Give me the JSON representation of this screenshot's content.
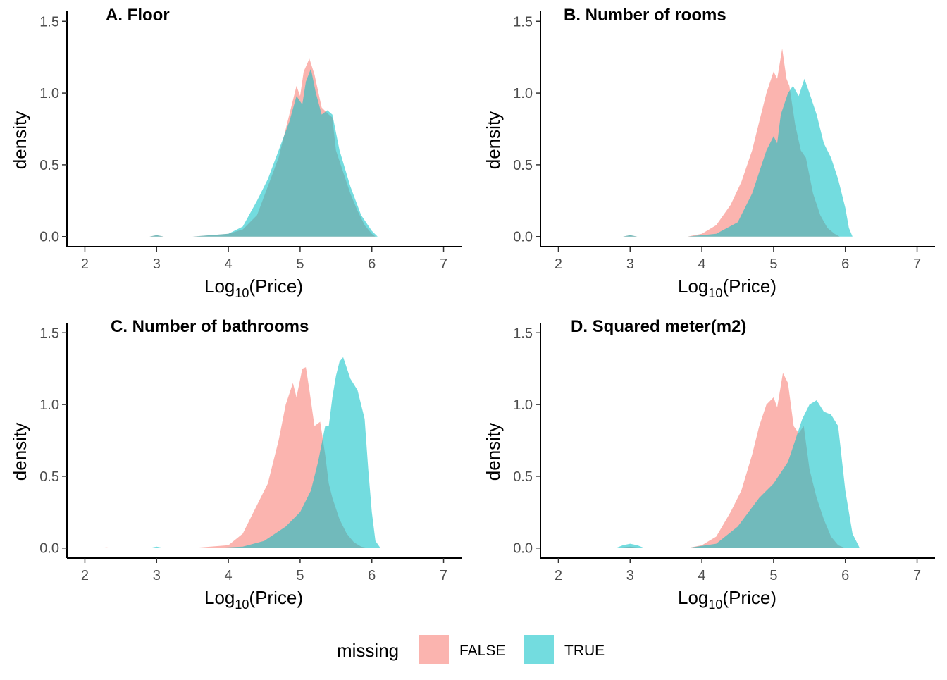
{
  "legend": {
    "title": "missing",
    "entries": [
      {
        "label": "FALSE",
        "color": "#F8766D"
      },
      {
        "label": "TRUE",
        "color": "#00BFC4"
      }
    ]
  },
  "fill_opacity": 0.55,
  "chart_data": [
    {
      "type": "area",
      "title": "A. Floor",
      "xlabel": "Log10(Price)",
      "ylabel": "density",
      "xlim": [
        1.75,
        7.25
      ],
      "ylim": [
        -0.07,
        1.57
      ],
      "xticks": [
        2,
        3,
        4,
        5,
        6,
        7
      ],
      "yticks": [
        0.0,
        0.5,
        1.0,
        1.5
      ],
      "ytick_labels": [
        "0.0",
        "0.5",
        "1.0",
        "1.5"
      ],
      "series": [
        {
          "name": "FALSE",
          "x": [
            2.9,
            3.0,
            3.1,
            3.5,
            4.0,
            4.2,
            4.4,
            4.55,
            4.7,
            4.85,
            4.95,
            5.0,
            5.05,
            5.13,
            5.2,
            5.3,
            5.4,
            5.45,
            5.5,
            5.6,
            5.7,
            5.8,
            5.9,
            6.0,
            6.05
          ],
          "y": [
            0.0,
            0.01,
            0.0,
            0.0,
            0.02,
            0.05,
            0.15,
            0.35,
            0.55,
            0.85,
            1.05,
            0.98,
            1.15,
            1.24,
            1.13,
            0.9,
            0.85,
            0.83,
            0.6,
            0.45,
            0.3,
            0.18,
            0.08,
            0.02,
            0.0
          ]
        },
        {
          "name": "TRUE",
          "x": [
            2.9,
            3.0,
            3.1,
            3.5,
            4.0,
            4.2,
            4.4,
            4.55,
            4.7,
            4.85,
            4.95,
            5.03,
            5.08,
            5.15,
            5.22,
            5.3,
            5.38,
            5.45,
            5.55,
            5.7,
            5.85,
            6.0,
            6.08
          ],
          "y": [
            0.0,
            0.01,
            0.0,
            0.0,
            0.02,
            0.07,
            0.25,
            0.4,
            0.6,
            0.8,
            0.98,
            0.92,
            1.08,
            1.17,
            1.0,
            0.85,
            0.88,
            0.85,
            0.6,
            0.35,
            0.15,
            0.04,
            0.0
          ]
        }
      ]
    },
    {
      "type": "area",
      "title": "B. Number of rooms",
      "xlabel": "Log10(Price)",
      "ylabel": "density",
      "xlim": [
        1.75,
        7.25
      ],
      "ylim": [
        -0.07,
        1.57
      ],
      "xticks": [
        2,
        3,
        4,
        5,
        6,
        7
      ],
      "yticks": [
        0.0,
        0.5,
        1.0,
        1.5
      ],
      "ytick_labels": [
        "0.0",
        "0.5",
        "1.0",
        "1.5"
      ],
      "series": [
        {
          "name": "FALSE",
          "x": [
            2.9,
            3.0,
            3.1,
            3.8,
            4.0,
            4.2,
            4.4,
            4.55,
            4.7,
            4.8,
            4.9,
            5.0,
            5.05,
            5.12,
            5.18,
            5.22,
            5.3,
            5.38,
            5.45,
            5.55,
            5.65,
            5.75,
            5.85,
            5.92
          ],
          "y": [
            0.0,
            0.01,
            0.0,
            0.0,
            0.02,
            0.08,
            0.22,
            0.38,
            0.6,
            0.8,
            1.0,
            1.15,
            1.1,
            1.31,
            1.1,
            1.05,
            0.78,
            0.6,
            0.55,
            0.3,
            0.15,
            0.06,
            0.02,
            0.0
          ]
        },
        {
          "name": "TRUE",
          "x": [
            2.9,
            3.0,
            3.1,
            3.8,
            4.2,
            4.5,
            4.7,
            4.8,
            4.9,
            5.0,
            5.05,
            5.1,
            5.2,
            5.27,
            5.35,
            5.43,
            5.5,
            5.6,
            5.7,
            5.8,
            5.9,
            6.0,
            6.05,
            6.1
          ],
          "y": [
            0.0,
            0.01,
            0.0,
            0.0,
            0.02,
            0.1,
            0.3,
            0.45,
            0.6,
            0.7,
            0.65,
            0.85,
            1.0,
            1.05,
            0.98,
            1.1,
            1.0,
            0.85,
            0.65,
            0.55,
            0.4,
            0.2,
            0.06,
            0.0
          ]
        }
      ]
    },
    {
      "type": "area",
      "title": "C. Number of bathrooms",
      "xlabel": "Log10(Price)",
      "ylabel": "density",
      "xlim": [
        1.75,
        7.25
      ],
      "ylim": [
        -0.07,
        1.57
      ],
      "xticks": [
        2,
        3,
        4,
        5,
        6,
        7
      ],
      "yticks": [
        0.0,
        0.5,
        1.0,
        1.5
      ],
      "ytick_labels": [
        "0.0",
        "0.5",
        "1.0",
        "1.5"
      ],
      "series": [
        {
          "name": "FALSE",
          "x": [
            2.2,
            2.3,
            2.4,
            3.5,
            4.0,
            4.2,
            4.4,
            4.55,
            4.7,
            4.8,
            4.9,
            4.95,
            5.03,
            5.08,
            5.13,
            5.2,
            5.28,
            5.35,
            5.4,
            5.45,
            5.55,
            5.65,
            5.75,
            5.85,
            5.95
          ],
          "y": [
            0.0,
            0.005,
            0.0,
            0.0,
            0.02,
            0.1,
            0.3,
            0.45,
            0.75,
            1.0,
            1.15,
            1.05,
            1.25,
            1.26,
            1.1,
            0.85,
            0.88,
            0.65,
            0.45,
            0.35,
            0.2,
            0.1,
            0.04,
            0.01,
            0.0
          ]
        },
        {
          "name": "TRUE",
          "x": [
            2.9,
            3.0,
            3.1,
            3.8,
            4.2,
            4.5,
            4.8,
            5.0,
            5.15,
            5.25,
            5.35,
            5.4,
            5.45,
            5.5,
            5.55,
            5.6,
            5.7,
            5.8,
            5.9,
            5.95,
            6.0,
            6.05,
            6.12
          ],
          "y": [
            0.0,
            0.01,
            0.0,
            0.0,
            0.01,
            0.05,
            0.15,
            0.25,
            0.4,
            0.6,
            0.85,
            0.85,
            1.05,
            1.2,
            1.3,
            1.33,
            1.18,
            1.1,
            0.9,
            0.55,
            0.25,
            0.05,
            0.0
          ]
        }
      ]
    },
    {
      "type": "area",
      "title": "D. Squared meter(m2)",
      "xlabel": "Log10(Price)",
      "ylabel": "density",
      "xlim": [
        1.75,
        7.25
      ],
      "ylim": [
        -0.07,
        1.57
      ],
      "xticks": [
        2,
        3,
        4,
        5,
        6,
        7
      ],
      "yticks": [
        0.0,
        0.5,
        1.0,
        1.5
      ],
      "ytick_labels": [
        "0.0",
        "0.5",
        "1.0",
        "1.5"
      ],
      "series": [
        {
          "name": "FALSE",
          "x": [
            2.8,
            3.0,
            3.2,
            3.8,
            4.0,
            4.2,
            4.4,
            4.55,
            4.7,
            4.8,
            4.9,
            5.0,
            5.05,
            5.13,
            5.2,
            5.28,
            5.35,
            5.42,
            5.5,
            5.6,
            5.7,
            5.8,
            5.9,
            6.0
          ],
          "y": [
            0.0,
            0.01,
            0.0,
            0.0,
            0.02,
            0.08,
            0.25,
            0.4,
            0.65,
            0.85,
            1.0,
            1.05,
            0.98,
            1.22,
            1.15,
            0.85,
            0.8,
            0.85,
            0.55,
            0.35,
            0.2,
            0.08,
            0.02,
            0.0
          ]
        },
        {
          "name": "TRUE",
          "x": [
            2.8,
            2.9,
            3.0,
            3.1,
            3.2,
            3.8,
            4.2,
            4.5,
            4.8,
            5.0,
            5.2,
            5.3,
            5.4,
            5.5,
            5.6,
            5.7,
            5.8,
            5.9,
            6.0,
            6.1,
            6.2
          ],
          "y": [
            0.0,
            0.02,
            0.03,
            0.02,
            0.0,
            0.0,
            0.03,
            0.15,
            0.35,
            0.45,
            0.6,
            0.75,
            0.9,
            1.0,
            1.03,
            0.95,
            0.93,
            0.85,
            0.4,
            0.1,
            0.0
          ]
        }
      ]
    }
  ]
}
